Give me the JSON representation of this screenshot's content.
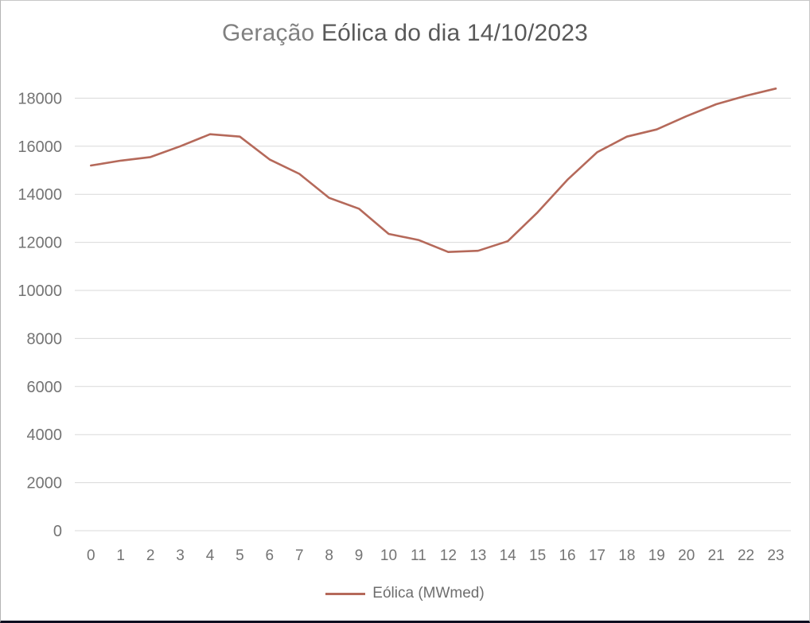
{
  "title": {
    "prefix": "Geração ",
    "main": "Eólica do dia 14/10/2023"
  },
  "legend": {
    "series_label": "Eólica (MWmed)"
  },
  "colors": {
    "series_line": "#b5695a",
    "gridline": "#d9d9d9",
    "axis_text": "#747474",
    "title_prefix": "#808080",
    "title_main": "#595959"
  },
  "chart_data": {
    "type": "line",
    "title": "Geração Eólica do dia 14/10/2023",
    "xlabel": "",
    "ylabel": "",
    "x": [
      0,
      1,
      2,
      3,
      4,
      5,
      6,
      7,
      8,
      9,
      10,
      11,
      12,
      13,
      14,
      15,
      16,
      17,
      18,
      19,
      20,
      21,
      22,
      23
    ],
    "series": [
      {
        "name": "Eólica (MWmed)",
        "color": "#b5695a",
        "values": [
          15200,
          15400,
          15550,
          16000,
          16500,
          16400,
          15450,
          14850,
          13850,
          13400,
          12350,
          12100,
          11600,
          11650,
          12050,
          13250,
          14600,
          15750,
          16400,
          16700,
          17250,
          17750,
          18100,
          18400
        ]
      }
    ],
    "ylim": [
      0,
      18000
    ],
    "ytick_step": 2000,
    "grid": "horizontal-only",
    "gridline_color": "#d9d9d9",
    "legend_position": "bottom-center"
  }
}
